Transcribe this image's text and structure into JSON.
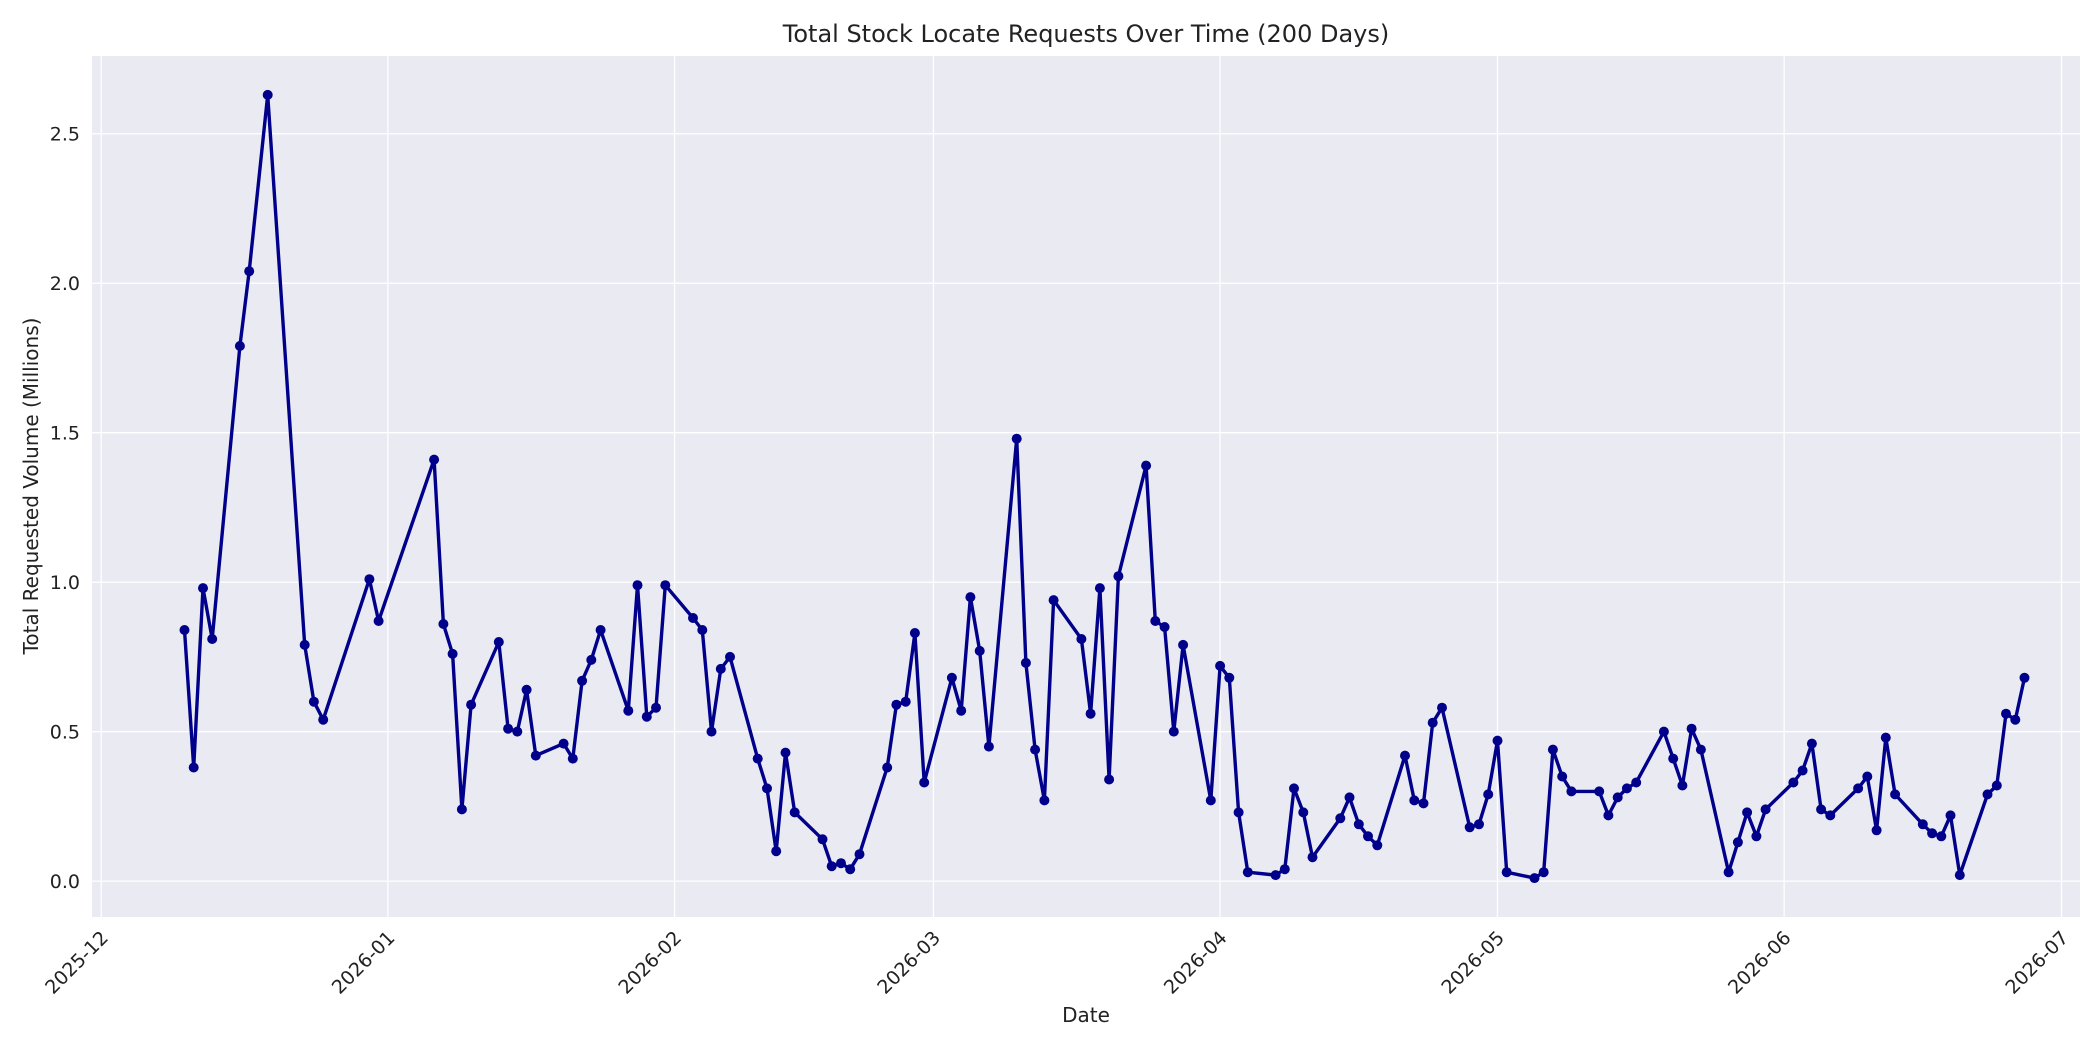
{
  "chart_data": {
    "type": "line",
    "title": "Total Stock Locate Requests Over Time (200 Days)",
    "xlabel": "Date",
    "ylabel": "Total Requested Volume (Millions)",
    "x_ticks": [
      "2025-12",
      "2026-01",
      "2026-02",
      "2026-03",
      "2026-04",
      "2026-05",
      "2026-06",
      "2026-07"
    ],
    "y_ticks": [
      "0.0",
      "0.5",
      "1.0",
      "1.5",
      "2.0",
      "2.5"
    ],
    "xlim": [
      "2025-11-30",
      "2026-07-03"
    ],
    "ylim": [
      -0.12,
      2.76
    ],
    "grid": true,
    "series": [
      {
        "color": "#00008b",
        "points": [
          [
            "2025-12-10",
            0.84
          ],
          [
            "2025-12-11",
            0.38
          ],
          [
            "2025-12-12",
            0.98
          ],
          [
            "2025-12-13",
            0.81
          ],
          [
            "2025-12-16",
            1.79
          ],
          [
            "2025-12-17",
            2.04
          ],
          [
            "2025-12-19",
            2.63
          ],
          [
            "2025-12-23",
            0.79
          ],
          [
            "2025-12-24",
            0.6
          ],
          [
            "2025-12-25",
            0.54
          ],
          [
            "2025-12-30",
            1.01
          ],
          [
            "2025-12-31",
            0.87
          ],
          [
            "2026-01-06",
            1.41
          ],
          [
            "2026-01-07",
            0.86
          ],
          [
            "2026-01-08",
            0.76
          ],
          [
            "2026-01-09",
            0.24
          ],
          [
            "2026-01-10",
            0.59
          ],
          [
            "2026-01-13",
            0.8
          ],
          [
            "2026-01-14",
            0.51
          ],
          [
            "2026-01-15",
            0.5
          ],
          [
            "2026-01-16",
            0.64
          ],
          [
            "2026-01-17",
            0.42
          ],
          [
            "2026-01-20",
            0.46
          ],
          [
            "2026-01-21",
            0.41
          ],
          [
            "2026-01-22",
            0.67
          ],
          [
            "2026-01-23",
            0.74
          ],
          [
            "2026-01-24",
            0.84
          ],
          [
            "2026-01-27",
            0.57
          ],
          [
            "2026-01-28",
            0.99
          ],
          [
            "2026-01-29",
            0.55
          ],
          [
            "2026-01-30",
            0.58
          ],
          [
            "2026-01-31",
            0.99
          ],
          [
            "2026-02-03",
            0.88
          ],
          [
            "2026-02-04",
            0.84
          ],
          [
            "2026-02-05",
            0.5
          ],
          [
            "2026-02-06",
            0.71
          ],
          [
            "2026-02-07",
            0.75
          ],
          [
            "2026-02-10",
            0.41
          ],
          [
            "2026-02-11",
            0.31
          ],
          [
            "2026-02-12",
            0.1
          ],
          [
            "2026-02-13",
            0.43
          ],
          [
            "2026-02-14",
            0.23
          ],
          [
            "2026-02-17",
            0.14
          ],
          [
            "2026-02-18",
            0.05
          ],
          [
            "2026-02-19",
            0.06
          ],
          [
            "2026-02-20",
            0.04
          ],
          [
            "2026-02-21",
            0.09
          ],
          [
            "2026-02-24",
            0.38
          ],
          [
            "2026-02-25",
            0.59
          ],
          [
            "2026-02-26",
            0.6
          ],
          [
            "2026-02-27",
            0.83
          ],
          [
            "2026-02-28",
            0.33
          ],
          [
            "2026-03-03",
            0.68
          ],
          [
            "2026-03-04",
            0.57
          ],
          [
            "2026-03-05",
            0.95
          ],
          [
            "2026-03-06",
            0.77
          ],
          [
            "2026-03-07",
            0.45
          ],
          [
            "2026-03-10",
            1.48
          ],
          [
            "2026-03-11",
            0.73
          ],
          [
            "2026-03-12",
            0.44
          ],
          [
            "2026-03-13",
            0.27
          ],
          [
            "2026-03-14",
            0.94
          ],
          [
            "2026-03-17",
            0.81
          ],
          [
            "2026-03-18",
            0.56
          ],
          [
            "2026-03-19",
            0.98
          ],
          [
            "2026-03-20",
            0.34
          ],
          [
            "2026-03-21",
            1.02
          ],
          [
            "2026-03-24",
            1.39
          ],
          [
            "2026-03-25",
            0.87
          ],
          [
            "2026-03-26",
            0.85
          ],
          [
            "2026-03-27",
            0.5
          ],
          [
            "2026-03-28",
            0.79
          ],
          [
            "2026-03-31",
            0.27
          ],
          [
            "2026-04-01",
            0.72
          ],
          [
            "2026-04-02",
            0.68
          ],
          [
            "2026-04-03",
            0.23
          ],
          [
            "2026-04-04",
            0.03
          ],
          [
            "2026-04-07",
            0.02
          ],
          [
            "2026-04-08",
            0.04
          ],
          [
            "2026-04-09",
            0.31
          ],
          [
            "2026-04-10",
            0.23
          ],
          [
            "2026-04-11",
            0.08
          ],
          [
            "2026-04-14",
            0.21
          ],
          [
            "2026-04-15",
            0.28
          ],
          [
            "2026-04-16",
            0.19
          ],
          [
            "2026-04-17",
            0.15
          ],
          [
            "2026-04-18",
            0.12
          ],
          [
            "2026-04-21",
            0.42
          ],
          [
            "2026-04-22",
            0.27
          ],
          [
            "2026-04-23",
            0.26
          ],
          [
            "2026-04-24",
            0.53
          ],
          [
            "2026-04-25",
            0.58
          ],
          [
            "2026-04-28",
            0.18
          ],
          [
            "2026-04-29",
            0.19
          ],
          [
            "2026-04-30",
            0.29
          ],
          [
            "2026-05-01",
            0.47
          ],
          [
            "2026-05-02",
            0.03
          ],
          [
            "2026-05-05",
            0.01
          ],
          [
            "2026-05-06",
            0.03
          ],
          [
            "2026-05-07",
            0.44
          ],
          [
            "2026-05-08",
            0.35
          ],
          [
            "2026-05-09",
            0.3
          ],
          [
            "2026-05-12",
            0.3
          ],
          [
            "2026-05-13",
            0.22
          ],
          [
            "2026-05-14",
            0.28
          ],
          [
            "2026-05-15",
            0.31
          ],
          [
            "2026-05-16",
            0.33
          ],
          [
            "2026-05-19",
            0.5
          ],
          [
            "2026-05-20",
            0.41
          ],
          [
            "2026-05-21",
            0.32
          ],
          [
            "2026-05-22",
            0.51
          ],
          [
            "2026-05-23",
            0.44
          ],
          [
            "2026-05-26",
            0.03
          ],
          [
            "2026-05-27",
            0.13
          ],
          [
            "2026-05-28",
            0.23
          ],
          [
            "2026-05-29",
            0.15
          ],
          [
            "2026-05-30",
            0.24
          ],
          [
            "2026-06-02",
            0.33
          ],
          [
            "2026-06-03",
            0.37
          ],
          [
            "2026-06-04",
            0.46
          ],
          [
            "2026-06-05",
            0.24
          ],
          [
            "2026-06-06",
            0.22
          ],
          [
            "2026-06-09",
            0.31
          ],
          [
            "2026-06-10",
            0.35
          ],
          [
            "2026-06-11",
            0.17
          ],
          [
            "2026-06-12",
            0.48
          ],
          [
            "2026-06-13",
            0.29
          ],
          [
            "2026-06-16",
            0.19
          ],
          [
            "2026-06-17",
            0.16
          ],
          [
            "2026-06-18",
            0.15
          ],
          [
            "2026-06-19",
            0.22
          ],
          [
            "2026-06-20",
            0.02
          ],
          [
            "2026-06-23",
            0.29
          ],
          [
            "2026-06-24",
            0.32
          ],
          [
            "2026-06-25",
            0.56
          ],
          [
            "2026-06-26",
            0.54
          ],
          [
            "2026-06-27",
            0.68
          ]
        ]
      }
    ]
  }
}
